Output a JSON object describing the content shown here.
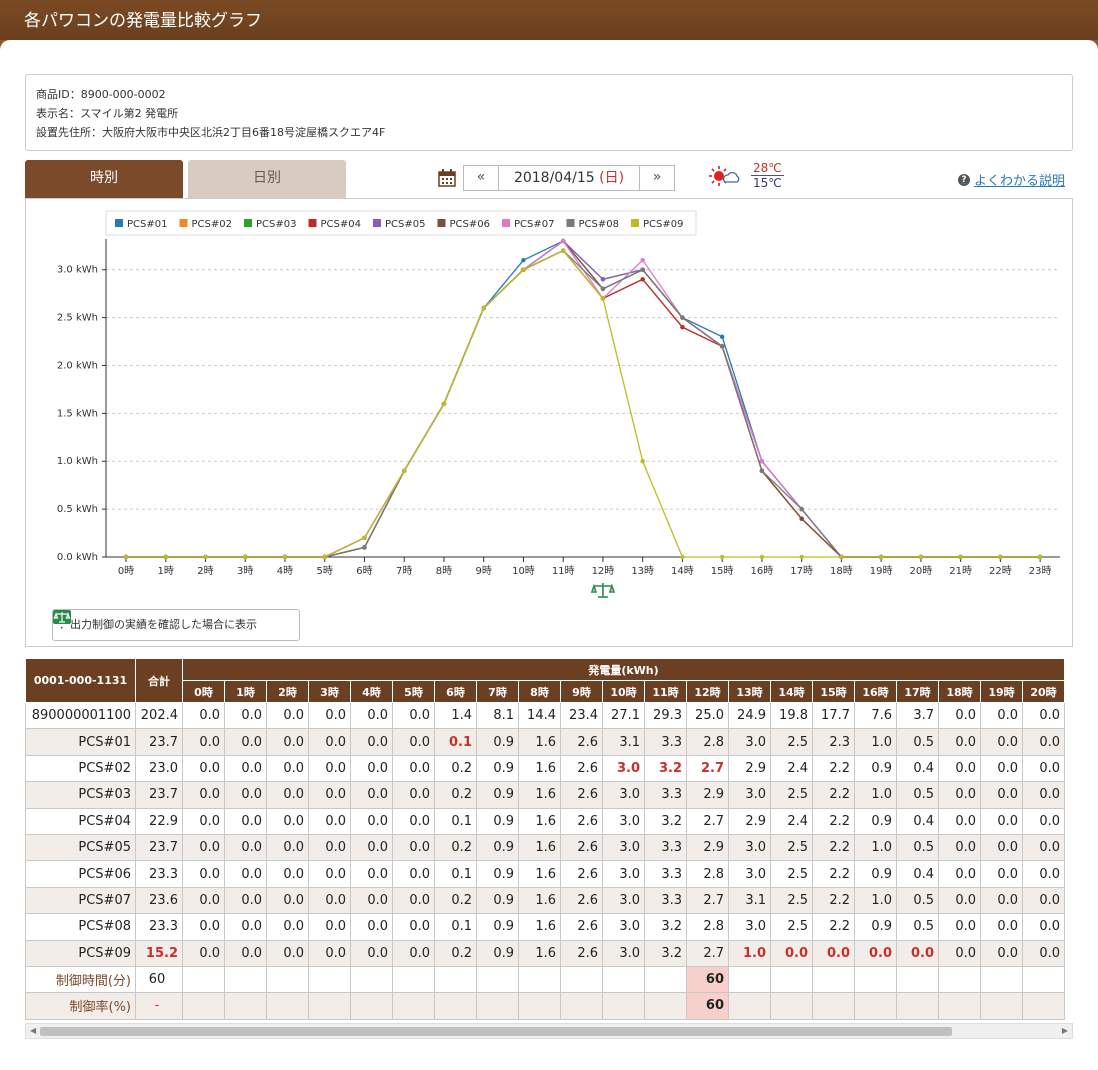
{
  "page": {
    "title": "各パワコンの発電量比較グラフ"
  },
  "info": {
    "product_id": "商品ID：8900-000-0002",
    "display_name": "表示名：スマイル第2 発電所",
    "address": "設置先住所：大阪府大阪市中央区北浜2丁目6番18号淀屋橋スクエア4F"
  },
  "tabs": {
    "hourly": "時別",
    "daily": "日別"
  },
  "date_nav": {
    "prev": "«",
    "date": "2018/04/15",
    "dow": "(日)",
    "next": "»"
  },
  "weather": {
    "icon": "sun-cloud-icon",
    "high": "28℃",
    "low": "15℃"
  },
  "help": {
    "label": "よくわかる説明"
  },
  "note": {
    "label": "：出力制御の実績を確認した場合に表示"
  },
  "chart_data": {
    "type": "line",
    "x": [
      "0時",
      "1時",
      "2時",
      "3時",
      "4時",
      "5時",
      "6時",
      "7時",
      "8時",
      "9時",
      "10時",
      "11時",
      "12時",
      "13時",
      "14時",
      "15時",
      "16時",
      "17時",
      "18時",
      "19時",
      "20時",
      "21時",
      "22時",
      "23時"
    ],
    "y_ticks": [
      "0.0 kWh",
      "0.5 kWh",
      "1.0 kWh",
      "1.5 kWh",
      "2.0 kWh",
      "2.5 kWh",
      "3.0 kWh"
    ],
    "ylim": [
      0,
      3.3
    ],
    "legend_position": "top-left",
    "series": [
      {
        "name": "PCS#01",
        "color": "#2a7ab0",
        "values": [
          0,
          0,
          0,
          0,
          0,
          0,
          0.1,
          0.9,
          1.6,
          2.6,
          3.1,
          3.3,
          2.8,
          3.0,
          2.5,
          2.3,
          1.0,
          0.5,
          0,
          0,
          0,
          0,
          0,
          0
        ]
      },
      {
        "name": "PCS#02",
        "color": "#f08a24",
        "values": [
          0,
          0,
          0,
          0,
          0,
          0,
          0.2,
          0.9,
          1.6,
          2.6,
          3.0,
          3.2,
          2.7,
          2.9,
          2.4,
          2.2,
          0.9,
          0.4,
          0,
          0,
          0,
          0,
          0,
          0
        ]
      },
      {
        "name": "PCS#03",
        "color": "#2ca02c",
        "values": [
          0,
          0,
          0,
          0,
          0,
          0,
          0.2,
          0.9,
          1.6,
          2.6,
          3.0,
          3.3,
          2.9,
          3.0,
          2.5,
          2.2,
          1.0,
          0.5,
          0,
          0,
          0,
          0,
          0,
          0
        ]
      },
      {
        "name": "PCS#04",
        "color": "#c02a2a",
        "values": [
          0,
          0,
          0,
          0,
          0,
          0,
          0.1,
          0.9,
          1.6,
          2.6,
          3.0,
          3.2,
          2.7,
          2.9,
          2.4,
          2.2,
          0.9,
          0.4,
          0,
          0,
          0,
          0,
          0,
          0
        ]
      },
      {
        "name": "PCS#05",
        "color": "#8c5cb8",
        "values": [
          0,
          0,
          0,
          0,
          0,
          0,
          0.2,
          0.9,
          1.6,
          2.6,
          3.0,
          3.3,
          2.9,
          3.0,
          2.5,
          2.2,
          1.0,
          0.5,
          0,
          0,
          0,
          0,
          0,
          0
        ]
      },
      {
        "name": "PCS#06",
        "color": "#7a5040",
        "values": [
          0,
          0,
          0,
          0,
          0,
          0,
          0.1,
          0.9,
          1.6,
          2.6,
          3.0,
          3.3,
          2.8,
          3.0,
          2.5,
          2.2,
          0.9,
          0.4,
          0,
          0,
          0,
          0,
          0,
          0
        ]
      },
      {
        "name": "PCS#07",
        "color": "#e07ac8",
        "values": [
          0,
          0,
          0,
          0,
          0,
          0,
          0.2,
          0.9,
          1.6,
          2.6,
          3.0,
          3.3,
          2.7,
          3.1,
          2.5,
          2.2,
          1.0,
          0.5,
          0,
          0,
          0,
          0,
          0,
          0
        ]
      },
      {
        "name": "PCS#08",
        "color": "#7a7a7a",
        "values": [
          0,
          0,
          0,
          0,
          0,
          0,
          0.1,
          0.9,
          1.6,
          2.6,
          3.0,
          3.2,
          2.8,
          3.0,
          2.5,
          2.2,
          0.9,
          0.5,
          0,
          0,
          0,
          0,
          0,
          0
        ]
      },
      {
        "name": "PCS#09",
        "color": "#bcbd22",
        "values": [
          0,
          0,
          0,
          0,
          0,
          0,
          0.2,
          0.9,
          1.6,
          2.6,
          3.0,
          3.2,
          2.7,
          1.0,
          0,
          0,
          0,
          0,
          0,
          0,
          0,
          0,
          0,
          0
        ]
      }
    ]
  },
  "table": {
    "group_label": "0001-000-1131",
    "total_label": "合計",
    "gen_label": "発電量(kWh)",
    "hours": [
      "0時",
      "1時",
      "2時",
      "3時",
      "4時",
      "5時",
      "6時",
      "7時",
      "8時",
      "9時",
      "10時",
      "11時",
      "12時",
      "13時",
      "14時",
      "15時",
      "16時",
      "17時",
      "18時",
      "19時",
      "20時"
    ],
    "rows": [
      {
        "name": "890000001100",
        "total": "202.4",
        "values": [
          "0.0",
          "0.0",
          "0.0",
          "0.0",
          "0.0",
          "0.0",
          "1.4",
          "8.1",
          "14.4",
          "23.4",
          "27.1",
          "29.3",
          "25.0",
          "24.9",
          "19.8",
          "17.7",
          "7.6",
          "3.7",
          "0.0",
          "0.0",
          "0.0"
        ],
        "hl": []
      },
      {
        "name": "PCS#01",
        "total": "23.7",
        "values": [
          "0.0",
          "0.0",
          "0.0",
          "0.0",
          "0.0",
          "0.0",
          "0.1",
          "0.9",
          "1.6",
          "2.6",
          "3.1",
          "3.3",
          "2.8",
          "3.0",
          "2.5",
          "2.3",
          "1.0",
          "0.5",
          "0.0",
          "0.0",
          "0.0"
        ],
        "hl": [
          6
        ]
      },
      {
        "name": "PCS#02",
        "total": "23.0",
        "values": [
          "0.0",
          "0.0",
          "0.0",
          "0.0",
          "0.0",
          "0.0",
          "0.2",
          "0.9",
          "1.6",
          "2.6",
          "3.0",
          "3.2",
          "2.7",
          "2.9",
          "2.4",
          "2.2",
          "0.9",
          "0.4",
          "0.0",
          "0.0",
          "0.0"
        ],
        "hl": [
          10,
          11,
          12
        ]
      },
      {
        "name": "PCS#03",
        "total": "23.7",
        "values": [
          "0.0",
          "0.0",
          "0.0",
          "0.0",
          "0.0",
          "0.0",
          "0.2",
          "0.9",
          "1.6",
          "2.6",
          "3.0",
          "3.3",
          "2.9",
          "3.0",
          "2.5",
          "2.2",
          "1.0",
          "0.5",
          "0.0",
          "0.0",
          "0.0"
        ],
        "hl": []
      },
      {
        "name": "PCS#04",
        "total": "22.9",
        "values": [
          "0.0",
          "0.0",
          "0.0",
          "0.0",
          "0.0",
          "0.0",
          "0.1",
          "0.9",
          "1.6",
          "2.6",
          "3.0",
          "3.2",
          "2.7",
          "2.9",
          "2.4",
          "2.2",
          "0.9",
          "0.4",
          "0.0",
          "0.0",
          "0.0"
        ],
        "hl": []
      },
      {
        "name": "PCS#05",
        "total": "23.7",
        "values": [
          "0.0",
          "0.0",
          "0.0",
          "0.0",
          "0.0",
          "0.0",
          "0.2",
          "0.9",
          "1.6",
          "2.6",
          "3.0",
          "3.3",
          "2.9",
          "3.0",
          "2.5",
          "2.2",
          "1.0",
          "0.5",
          "0.0",
          "0.0",
          "0.0"
        ],
        "hl": []
      },
      {
        "name": "PCS#06",
        "total": "23.3",
        "values": [
          "0.0",
          "0.0",
          "0.0",
          "0.0",
          "0.0",
          "0.0",
          "0.1",
          "0.9",
          "1.6",
          "2.6",
          "3.0",
          "3.3",
          "2.8",
          "3.0",
          "2.5",
          "2.2",
          "0.9",
          "0.4",
          "0.0",
          "0.0",
          "0.0"
        ],
        "hl": []
      },
      {
        "name": "PCS#07",
        "total": "23.6",
        "values": [
          "0.0",
          "0.0",
          "0.0",
          "0.0",
          "0.0",
          "0.0",
          "0.2",
          "0.9",
          "1.6",
          "2.6",
          "3.0",
          "3.3",
          "2.7",
          "3.1",
          "2.5",
          "2.2",
          "1.0",
          "0.5",
          "0.0",
          "0.0",
          "0.0"
        ],
        "hl": []
      },
      {
        "name": "PCS#08",
        "total": "23.3",
        "values": [
          "0.0",
          "0.0",
          "0.0",
          "0.0",
          "0.0",
          "0.0",
          "0.1",
          "0.9",
          "1.6",
          "2.6",
          "3.0",
          "3.2",
          "2.8",
          "3.0",
          "2.5",
          "2.2",
          "0.9",
          "0.5",
          "0.0",
          "0.0",
          "0.0"
        ],
        "hl": []
      },
      {
        "name": "PCS#09",
        "total": "15.2",
        "total_hl": true,
        "values": [
          "0.0",
          "0.0",
          "0.0",
          "0.0",
          "0.0",
          "0.0",
          "0.2",
          "0.9",
          "1.6",
          "2.6",
          "3.0",
          "3.2",
          "2.7",
          "1.0",
          "0.0",
          "0.0",
          "0.0",
          "0.0",
          "0.0",
          "0.0",
          "0.0"
        ],
        "hl": [
          13,
          14,
          15,
          16,
          17
        ]
      }
    ],
    "control_time": {
      "label": "制御時間(分)",
      "total": "60",
      "cell12": "60"
    },
    "control_rate": {
      "label": "制御率(%)",
      "total": "-",
      "cell12": "60"
    }
  }
}
